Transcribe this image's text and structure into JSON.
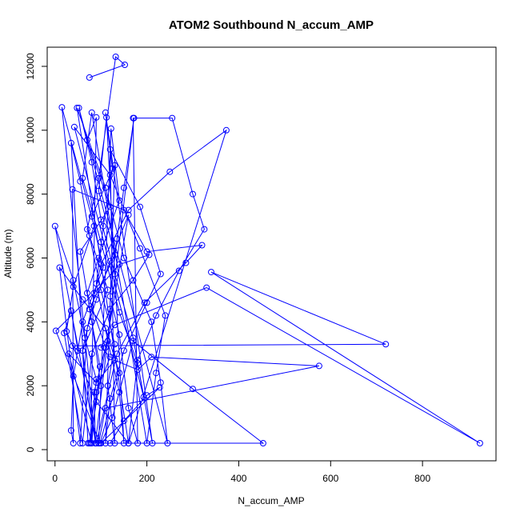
{
  "chart_data": {
    "type": "scatter",
    "title": "ATOM2 Southbound N_accum_AMP",
    "xlabel": "N_accum_AMP",
    "ylabel": "Altitude (m)",
    "xlim": [
      -17,
      960
    ],
    "ylim": [
      -350,
      12600
    ],
    "xticks": [
      0,
      200,
      400,
      600,
      800
    ],
    "yticks": [
      0,
      2000,
      4000,
      6000,
      8000,
      10000,
      12000
    ],
    "grid": false,
    "legend": "none",
    "color": "#0000ff",
    "series": [
      {
        "mode": "lines+markers",
        "points": [
          [
            75,
            11650
          ],
          [
            152,
            12050
          ],
          [
            132,
            12300
          ],
          [
            95,
            8500
          ],
          [
            70,
            6900
          ],
          [
            115,
            5000
          ],
          [
            60,
            3100
          ],
          [
            88,
            200
          ],
          [
            15,
            10720
          ],
          [
            85,
            7000
          ],
          [
            40,
            5100
          ],
          [
            25,
            3700
          ],
          [
            90,
            1500
          ],
          [
            160,
            200
          ],
          [
            48,
            10700
          ],
          [
            110,
            8200
          ],
          [
            150,
            6000
          ],
          [
            210,
            4000
          ],
          [
            230,
            2100
          ],
          [
            245,
            200
          ],
          [
            52,
            10700
          ],
          [
            80,
            9000
          ],
          [
            100,
            7200
          ],
          [
            130,
            5500
          ],
          [
            170,
            3500
          ],
          [
            193,
            1650
          ],
          [
            42,
            10100
          ],
          [
            120,
            8600
          ],
          [
            185,
            6300
          ],
          [
            240,
            4200
          ],
          [
            220,
            2400
          ],
          [
            200,
            200
          ],
          [
            80,
            10550
          ],
          [
            60,
            8500
          ],
          [
            100,
            6500
          ],
          [
            140,
            4300
          ],
          [
            180,
            2700
          ],
          [
            212,
            200
          ],
          [
            110,
            10550
          ],
          [
            125,
            8800
          ],
          [
            105,
            7000
          ],
          [
            90,
            5200
          ],
          [
            115,
            3400
          ],
          [
            140,
            1800
          ],
          [
            150,
            200
          ],
          [
            112,
            10400
          ],
          [
            95,
            8100
          ],
          [
            130,
            6100
          ],
          [
            75,
            4400
          ],
          [
            98,
            2600
          ],
          [
            78,
            200
          ],
          [
            90,
            10400
          ],
          [
            70,
            9700
          ],
          [
            120,
            7600
          ],
          [
            55,
            6200
          ],
          [
            80,
            4000
          ],
          [
            100,
            2000
          ],
          [
            95,
            200
          ],
          [
            122,
            10050
          ],
          [
            140,
            7800
          ],
          [
            95,
            6000
          ],
          [
            70,
            4900
          ],
          [
            110,
            3200
          ],
          [
            85,
            1800
          ],
          [
            88,
            200
          ],
          [
            172,
            10380
          ],
          [
            150,
            8200
          ],
          [
            135,
            6600
          ],
          [
            120,
            4800
          ],
          [
            140,
            3600
          ],
          [
            160,
            1300
          ],
          [
            180,
            200
          ],
          [
            170,
            10380
          ],
          [
            255,
            10380
          ],
          [
            300,
            8000
          ],
          [
            325,
            6900
          ],
          [
            270,
            5600
          ],
          [
            220,
            4200
          ],
          [
            180,
            2800
          ],
          [
            160,
            200
          ],
          [
            373,
            10000
          ],
          [
            250,
            8700
          ],
          [
            160,
            7500
          ],
          [
            100,
            5800
          ],
          [
            60,
            3100
          ],
          [
            72,
            200
          ],
          [
            35,
            9600
          ],
          [
            55,
            8400
          ],
          [
            75,
            6700
          ],
          [
            100,
            5000
          ],
          [
            130,
            3300
          ],
          [
            115,
            2000
          ],
          [
            130,
            200
          ],
          [
            120,
            9400
          ],
          [
            185,
            7600
          ],
          [
            230,
            5500
          ],
          [
            200,
            4600
          ],
          [
            150,
            3100
          ],
          [
            120,
            1600
          ],
          [
            110,
            200
          ],
          [
            130,
            8900
          ],
          [
            80,
            7300
          ],
          [
            105,
            5700
          ],
          [
            60,
            4000
          ],
          [
            40,
            2300
          ],
          [
            35,
            600
          ],
          [
            40,
            200
          ],
          [
            38,
            8150
          ],
          [
            150,
            7500
          ],
          [
            200,
            6200
          ],
          [
            320,
            6400
          ],
          [
            285,
            5850
          ],
          [
            195,
            4600
          ],
          [
            135,
            3000
          ],
          [
            90,
            200
          ],
          [
            0,
            7000
          ],
          [
            40,
            5300
          ],
          [
            65,
            3500
          ],
          [
            90,
            2200
          ],
          [
            75,
            200
          ],
          [
            160,
            7350
          ],
          [
            120,
            5900
          ],
          [
            90,
            4700
          ],
          [
            70,
            3800
          ],
          [
            55,
            200
          ],
          [
            10,
            5700
          ],
          [
            60,
            4700
          ],
          [
            110,
            3800
          ],
          [
            140,
            2400
          ],
          [
            98,
            200
          ],
          [
            2,
            3720
          ],
          [
            85,
            4900
          ],
          [
            140,
            5800
          ],
          [
            205,
            6100
          ],
          [
            170,
            5300
          ],
          [
            120,
            4400
          ],
          [
            80,
            3000
          ],
          [
            60,
            200
          ],
          [
            20,
            3650
          ],
          [
            35,
            4350
          ],
          [
            50,
            3100
          ],
          [
            38,
            3250
          ],
          [
            720,
            3300
          ],
          [
            340,
            5560
          ],
          [
            925,
            200
          ],
          [
            330,
            5070
          ],
          [
            130,
            3900
          ],
          [
            100,
            3200
          ],
          [
            120,
            2900
          ],
          [
            90,
            1800
          ],
          [
            80,
            200
          ],
          [
            30,
            3000
          ],
          [
            90,
            2100
          ],
          [
            130,
            2800
          ],
          [
            180,
            2500
          ],
          [
            210,
            2900
          ],
          [
            575,
            2620
          ],
          [
            110,
            1300
          ],
          [
            95,
            200
          ],
          [
            453,
            200
          ],
          [
            300,
            1900
          ],
          [
            170,
            3400
          ],
          [
            125,
            1000
          ],
          [
            100,
            200
          ],
          [
            228,
            1950
          ],
          [
            200,
            1700
          ],
          [
            150,
            900
          ],
          [
            120,
            200
          ]
        ]
      }
    ]
  }
}
